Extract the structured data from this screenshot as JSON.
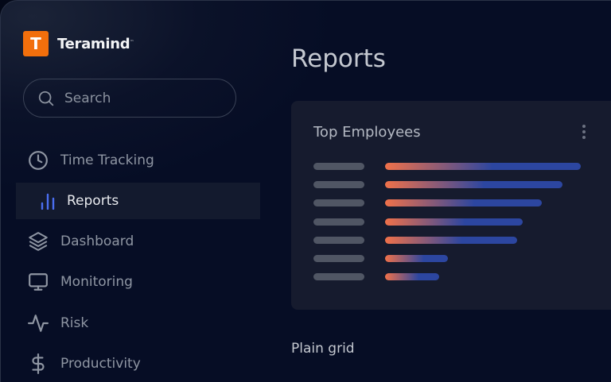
{
  "brand": {
    "name": "Teramind",
    "logo_letter": "T",
    "trademark": "™",
    "color": "#f26f0c"
  },
  "search": {
    "placeholder": "Search",
    "value": ""
  },
  "sidebar": {
    "items": [
      {
        "label": "Time Tracking",
        "icon": "clock-icon",
        "active": false
      },
      {
        "label": "Reports",
        "icon": "bar-chart-icon",
        "active": true
      },
      {
        "label": "Dashboard",
        "icon": "layers-icon",
        "active": false
      },
      {
        "label": "Monitoring",
        "icon": "monitor-icon",
        "active": false
      },
      {
        "label": "Risk",
        "icon": "activity-icon",
        "active": false
      },
      {
        "label": "Productivity",
        "icon": "dollar-icon",
        "active": false
      }
    ]
  },
  "main": {
    "title": "Reports",
    "card": {
      "title": "Top Employees",
      "menu_icon": "more-vertical-icon",
      "bars_percent_of_max": [
        100,
        90.7,
        80.1,
        70.3,
        67.5,
        32.1,
        27.6
      ],
      "gradient": {
        "start": "#f0714a",
        "end": "#2c46a0"
      }
    },
    "section_title": "Plain grid"
  },
  "colors": {
    "background": "#060d25",
    "card": "#161b2e",
    "accent": "#4a6ef0"
  }
}
